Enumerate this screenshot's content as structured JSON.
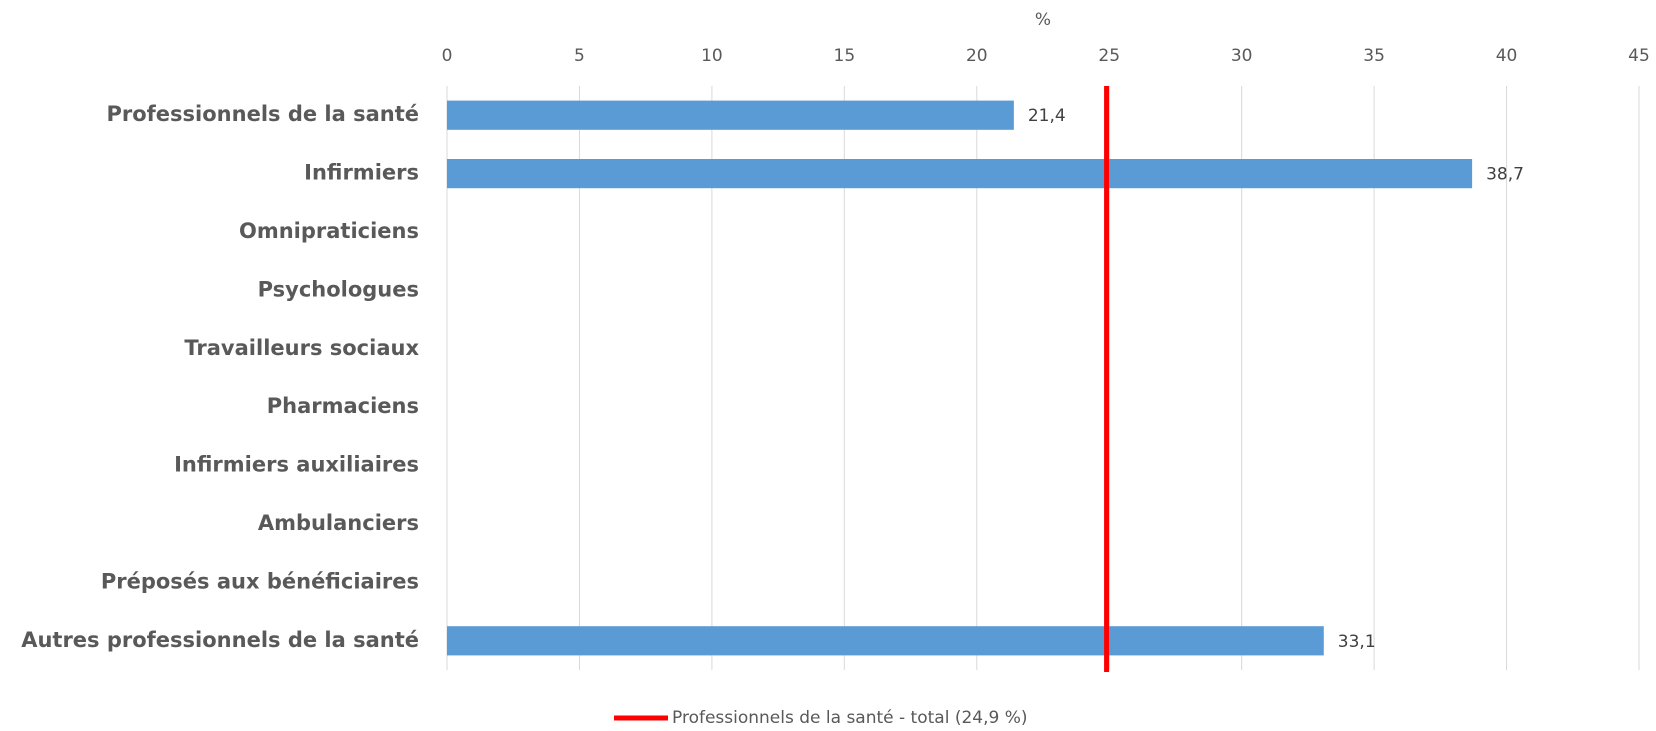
{
  "chart_data": {
    "type": "barh",
    "axis_label": "%",
    "categories": [
      "Professionnels de la santé",
      "Infirmiers",
      "Omnipraticiens",
      "Psychologues",
      "Travailleurs sociaux",
      "Pharmaciens",
      "Infirmiers auxiliaires",
      "Ambulanciers",
      "Préposés aux bénéficiaires",
      "Autres professionnels de la santé"
    ],
    "values": [
      21.4,
      38.7,
      null,
      null,
      null,
      null,
      null,
      null,
      null,
      33.1
    ],
    "value_labels": [
      "21,4",
      "38,7",
      null,
      null,
      null,
      null,
      null,
      null,
      null,
      "33,1"
    ],
    "color": "#5b9bd5",
    "reference": {
      "name": "Professionnels de la santé - total (24,9 %)",
      "value": 24.9,
      "color": "#ff0000"
    },
    "xlim": [
      0,
      45
    ],
    "xticks": [
      0,
      5,
      10,
      15,
      20,
      25,
      30,
      35,
      40,
      45
    ],
    "grid": true,
    "legend": "bottom"
  }
}
